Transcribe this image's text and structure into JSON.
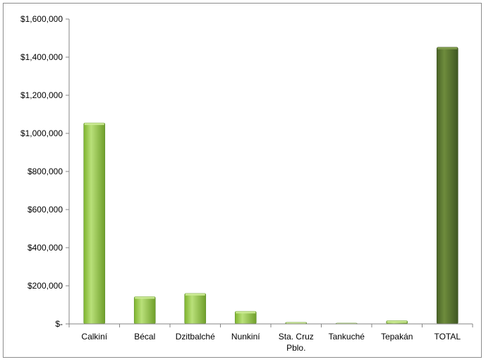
{
  "chart_data": {
    "type": "bar",
    "title": "",
    "xlabel": "",
    "ylabel": "",
    "categories": [
      "Calkiní",
      "Bécal",
      "Dzitbalché",
      "Nunkiní",
      "Sta. Cruz Pblo.",
      "Tankuché",
      "Tepakán",
      "TOTAL"
    ],
    "values": [
      1055000,
      143000,
      160000,
      66000,
      8000,
      4000,
      17000,
      1452000
    ],
    "ylim": [
      0,
      1600000
    ],
    "y_ticks": [
      "$-",
      "$200,000",
      "$400,000",
      "$600,000",
      "$800,000",
      "$1,000,000",
      "$1,200,000",
      "$1,400,000",
      "$1,600,000"
    ],
    "grid": false,
    "legend": "none",
    "colors": {
      "bars": "#92c83e",
      "bars_dark": "#5b8a2e",
      "total": "#56702e",
      "total_dark": "#3d5220",
      "axis": "#868686"
    }
  }
}
